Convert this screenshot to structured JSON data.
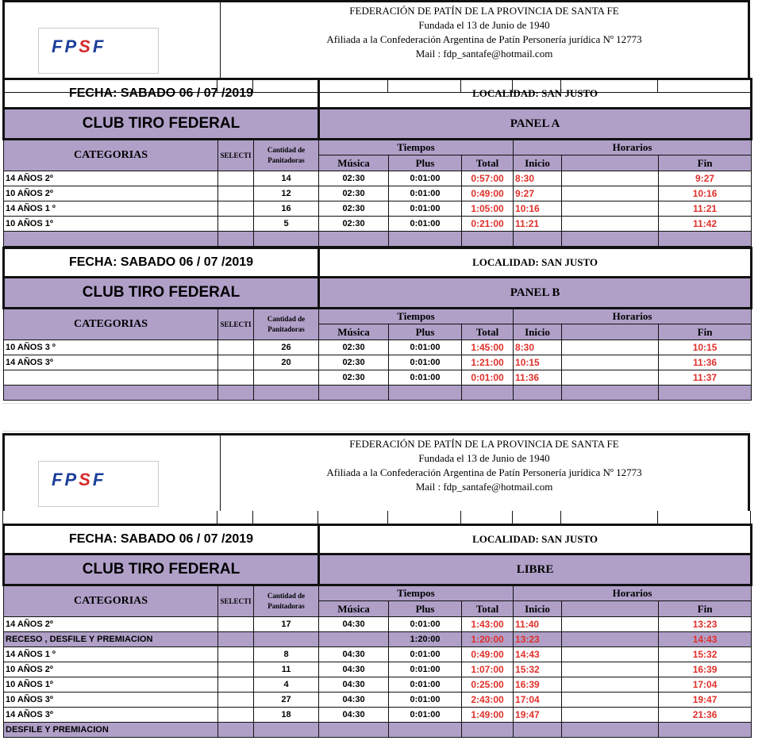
{
  "org": {
    "lines": [
      "FEDERACIÓN DE PATÍN DE LA PROVINCIA DE SANTA FE",
      "Fundada el 13 de Junio de 1940",
      "Afiliada a la Confederación Argentina de Patín Personería jurídica Nº 12773",
      "Mail : fdp_santafe@hotmail.com"
    ],
    "logo_text": "FPSF"
  },
  "colors": {
    "purple": "#b0a0c8",
    "red": "#e0302a"
  },
  "headers": {
    "categorias": "CATEGORIAS",
    "select": "SELECTI",
    "cantidad": "Cantidad de Panitadoras",
    "tiempos": "Tiempos",
    "horarios": "Horarios",
    "musica": "Música",
    "plus": "Plus",
    "total": "Total",
    "inicio": "Inicio",
    "fin": "Fin"
  },
  "sections": [
    {
      "fecha": "FECHA: SABADO 06 / 07 /2019",
      "localidad": "LOCALIDAD: SAN JUSTO",
      "club": "CLUB TIRO FEDERAL",
      "panel": "PANEL A",
      "rows": [
        {
          "cat": "14 AÑOS 2º",
          "cant": "14",
          "musica": "02:30",
          "plus": "0:01:00",
          "total": "0:57:00",
          "inicio": "8:30",
          "fin": "9:27"
        },
        {
          "cat": "10 AÑOS 2º",
          "cant": "12",
          "musica": "02:30",
          "plus": "0:01:00",
          "total": "0:49:00",
          "inicio": "9:27",
          "fin": "10:16"
        },
        {
          "cat": "14 AÑOS 1 º",
          "cant": "16",
          "musica": "02:30",
          "plus": "0:01:00",
          "total": "1:05:00",
          "inicio": "10:16",
          "fin": "11:21"
        },
        {
          "cat": "10 AÑOS 1º",
          "cant": "5",
          "musica": "02:30",
          "plus": "0:01:00",
          "total": "0:21:00",
          "inicio": "11:21",
          "fin": "11:42"
        }
      ]
    },
    {
      "fecha": "FECHA: SABADO 06 / 07 /2019",
      "localidad": "LOCALIDAD: SAN JUSTO",
      "club": "CLUB TIRO FEDERAL",
      "panel": "PANEL B",
      "rows": [
        {
          "cat": "10 AÑOS 3 º",
          "cant": "26",
          "musica": "02:30",
          "plus": "0:01:00",
          "total": "1:45:00",
          "inicio": "8:30",
          "fin": "10:15"
        },
        {
          "cat": "14 AÑOS 3º",
          "cant": "20",
          "musica": "02:30",
          "plus": "0:01:00",
          "total": "1:21:00",
          "inicio": "10:15",
          "fin": "11:36"
        },
        {
          "cat": "",
          "cant": "",
          "musica": "02:30",
          "plus": "0:01:00",
          "total": "0:01:00",
          "inicio": "11:36",
          "fin": "11:37"
        }
      ]
    },
    {
      "fecha": "FECHA: SABADO 06 / 07 /2019",
      "localidad": "LOCALIDAD: SAN JUSTO",
      "club": "CLUB TIRO FEDERAL",
      "panel": "LIBRE",
      "rows": [
        {
          "cat": "14 AÑOS 2º",
          "cant": "17",
          "musica": "04:30",
          "plus": "0:01:00",
          "total": "1:43:00",
          "inicio": "11:40",
          "fin": "13:23"
        },
        {
          "cat": "RECESO , DESFILE Y PREMIACION",
          "cant": "",
          "musica": "",
          "plus": "1:20:00",
          "total": "1:20:00",
          "inicio": "13:23",
          "fin": "14:43",
          "highlight": true
        },
        {
          "cat": "14 AÑOS 1 º",
          "cant": "8",
          "musica": "04:30",
          "plus": "0:01:00",
          "total": "0:49:00",
          "inicio": "14:43",
          "fin": "15:32"
        },
        {
          "cat": "10 AÑOS 2º",
          "cant": "11",
          "musica": "04:30",
          "plus": "0:01:00",
          "total": "1:07:00",
          "inicio": "15:32",
          "fin": "16:39"
        },
        {
          "cat": "10 AÑOS 1º",
          "cant": "4",
          "musica": "04:30",
          "plus": "0:01:00",
          "total": "0:25:00",
          "inicio": "16:39",
          "fin": "17:04"
        },
        {
          "cat": "10 AÑOS 3º",
          "cant": "27",
          "musica": "04:30",
          "plus": "0:01:00",
          "total": "2:43:00",
          "inicio": "17:04",
          "fin": "19:47"
        },
        {
          "cat": "14 AÑOS 3º",
          "cant": "18",
          "musica": "04:30",
          "plus": "0:01:00",
          "total": "1:49:00",
          "inicio": "19:47",
          "fin": "21:36"
        }
      ],
      "footer": "DESFILE Y PREMIACION"
    }
  ]
}
